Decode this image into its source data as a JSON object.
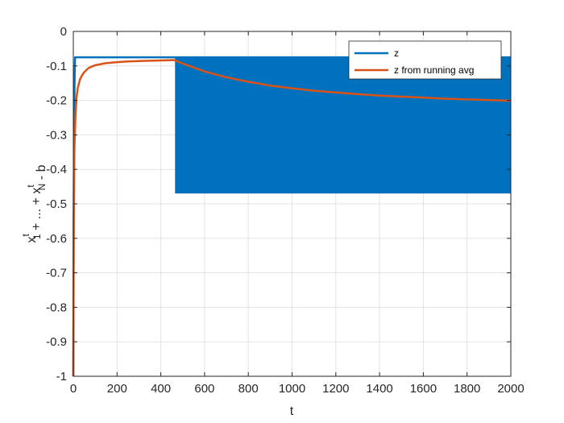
{
  "chart_data": {
    "type": "line",
    "title": "",
    "xlabel": "t",
    "ylabel": {
      "parts": [
        {
          "text": "x",
          "sup": "t",
          "sub": "1"
        },
        {
          "text": " + ... + "
        },
        {
          "text": "x",
          "sup": "t",
          "sub": "N"
        },
        {
          "text": " - b"
        }
      ]
    },
    "xlim": [
      0,
      2000
    ],
    "ylim": [
      -1,
      0
    ],
    "xticks": [
      0,
      200,
      400,
      600,
      800,
      1000,
      1200,
      1400,
      1600,
      1800,
      2000
    ],
    "yticks": [
      0,
      -0.1,
      -0.2,
      -0.3,
      -0.4,
      -0.5,
      -0.6,
      -0.7,
      -0.8,
      -0.9,
      -1
    ],
    "xtick_labels": [
      "0",
      "200",
      "400",
      "600",
      "800",
      "1000",
      "1200",
      "1400",
      "1600",
      "1800",
      "2000"
    ],
    "ytick_labels": [
      "0",
      "-0.1",
      "-0.2",
      "-0.3",
      "-0.4",
      "-0.5",
      "-0.6",
      "-0.7",
      "-0.8",
      "-0.9",
      "-1"
    ],
    "grid": true,
    "legend_position": "top-right",
    "series": [
      {
        "name": "z",
        "color": "#0072BD",
        "description_points": {
          "x": [
            0,
            2,
            4,
            6,
            8,
            10,
            460,
            465,
            2000
          ],
          "y": [
            -1.0,
            -0.5,
            -0.25,
            -0.13,
            -0.075,
            -0.075,
            -0.075,
            -0.075,
            -0.075
          ]
        },
        "oscillation_band": {
          "x_start": 465,
          "x_end": 2000,
          "y_upper": -0.075,
          "y_lower": -0.47
        }
      },
      {
        "name": "z from running avg",
        "color": "#D95319",
        "x": [
          0,
          2,
          5,
          10,
          15,
          20,
          30,
          40,
          50,
          70,
          100,
          150,
          200,
          250,
          300,
          350,
          400,
          460,
          500,
          600,
          700,
          800,
          900,
          1000,
          1100,
          1200,
          1300,
          1400,
          1500,
          1600,
          1700,
          1800,
          1900,
          2000
        ],
        "y": [
          -1.0,
          -0.55,
          -0.34,
          -0.24,
          -0.19,
          -0.165,
          -0.14,
          -0.127,
          -0.118,
          -0.106,
          -0.098,
          -0.092,
          -0.089,
          -0.087,
          -0.086,
          -0.085,
          -0.084,
          -0.083,
          -0.093,
          -0.116,
          -0.133,
          -0.146,
          -0.157,
          -0.165,
          -0.172,
          -0.177,
          -0.182,
          -0.186,
          -0.189,
          -0.192,
          -0.195,
          -0.197,
          -0.199,
          -0.201
        ]
      }
    ]
  }
}
